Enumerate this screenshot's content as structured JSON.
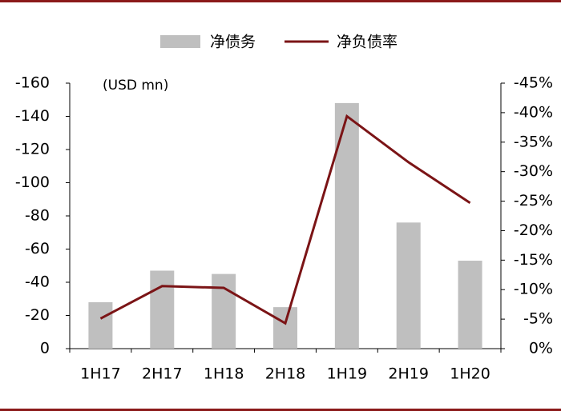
{
  "chart_data": {
    "type": "bar-line",
    "annotation": "(USD mn)",
    "categories": [
      "1H17",
      "2H17",
      "1H18",
      "2H18",
      "1H19",
      "2H19",
      "1H20"
    ],
    "series": [
      {
        "name": "净债务",
        "type": "bar",
        "color": "#bfbfbf",
        "values": [
          -28,
          -47,
          -45,
          -25,
          -148,
          -76,
          -53
        ]
      },
      {
        "name": "净负债率",
        "type": "line",
        "axis": "y2",
        "color": "#7b1416",
        "values": [
          -5.1,
          -10.6,
          -10.3,
          -4.3,
          -39.4,
          -31.6,
          -24.7
        ]
      }
    ],
    "ylim": [
      0,
      -160
    ],
    "yticks": [
      0,
      -20,
      -40,
      -60,
      -80,
      -100,
      -120,
      -140,
      -160
    ],
    "y2lim": [
      0,
      -45
    ],
    "y2ticks": [
      {
        "value": 0,
        "label": "0%"
      },
      {
        "value": -5,
        "label": "-5%"
      },
      {
        "value": -10,
        "label": "-10%"
      },
      {
        "value": -15,
        "label": "-15%"
      },
      {
        "value": -20,
        "label": "-20%"
      },
      {
        "value": -25,
        "label": "-25%"
      },
      {
        "value": -30,
        "label": "-30%"
      },
      {
        "value": -35,
        "label": "-35%"
      },
      {
        "value": -40,
        "label": "-40%"
      },
      {
        "value": -45,
        "label": "-45%"
      }
    ],
    "legend": "top",
    "grid": false
  }
}
